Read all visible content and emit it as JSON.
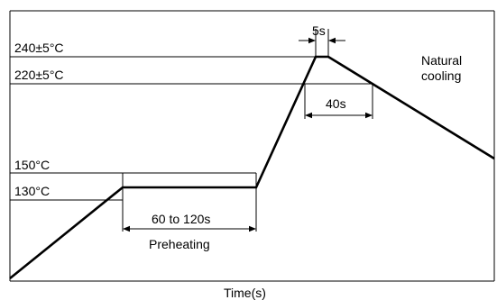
{
  "diagram": {
    "x_axis_label": "Time(s)",
    "levels": {
      "peak": "240±5°C",
      "reflow": "220±5°C",
      "preheat_upper": "150°C",
      "preheat_lower": "130°C"
    },
    "durations": {
      "peak_hold": "5s",
      "above_reflow": "40s",
      "preheat": "60 to 120s"
    },
    "annotations": {
      "preheat_label": "Preheating",
      "cooling_line1": "Natural",
      "cooling_line2": "cooling"
    },
    "colors": {
      "line": "#000000",
      "background": "#ffffff"
    }
  }
}
